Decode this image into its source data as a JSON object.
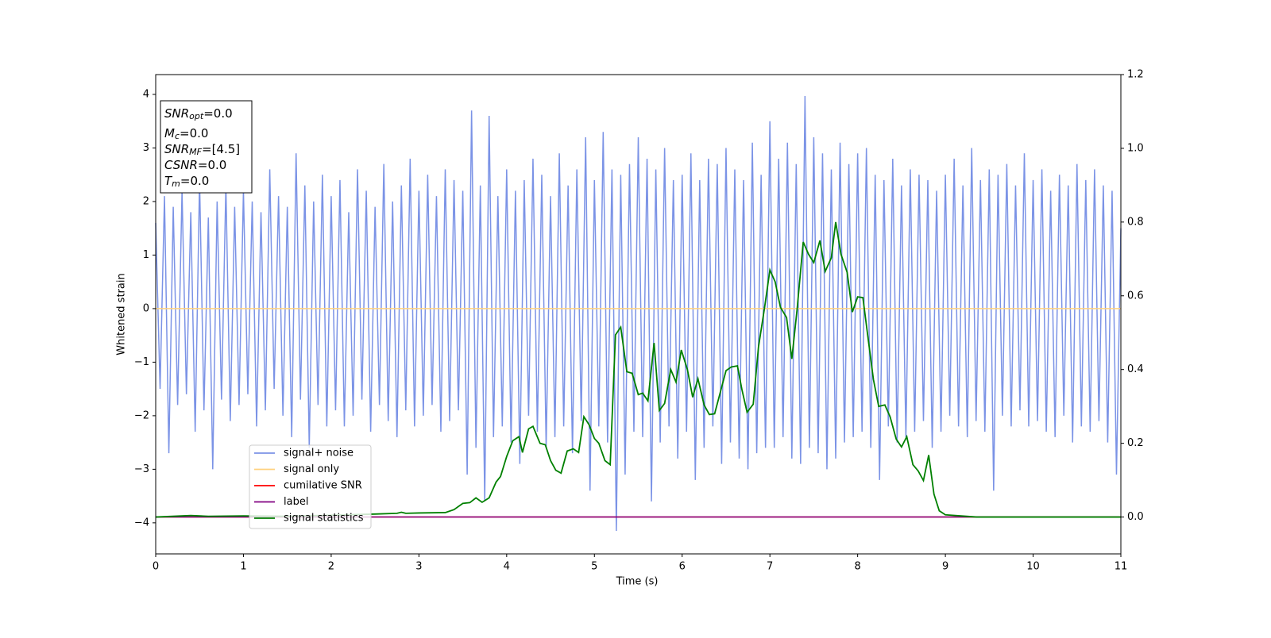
{
  "chart_data": {
    "type": "line",
    "xlabel": "Time (s)",
    "ylabel": "Whitened strain",
    "xlim": [
      0,
      11
    ],
    "ylim": [
      -4.58,
      4.37
    ],
    "y2lim": [
      -0.1,
      1.2
    ],
    "xticks": [
      0,
      1,
      2,
      3,
      4,
      5,
      6,
      7,
      8,
      9,
      10,
      11
    ],
    "yticks": [
      {
        "value": -4,
        "label": "−4"
      },
      {
        "value": -3,
        "label": "−3"
      },
      {
        "value": -2,
        "label": "−2"
      },
      {
        "value": -1,
        "label": "−1"
      },
      0,
      1,
      2,
      3,
      4
    ],
    "y2ticks": [
      {
        "value": 0,
        "label": "0.0"
      },
      0.2,
      0.4,
      0.6,
      0.8,
      {
        "value": 1,
        "label": "1.0"
      },
      1.2
    ],
    "grid": false,
    "legend": "lower left",
    "annotations": [
      {
        "symbol": "SNR",
        "subscript": "opt",
        "text": "=0.0"
      },
      {
        "symbol": "M",
        "subscript": "c",
        "text": "=0.0"
      },
      {
        "symbol": "SNR",
        "subscript": "MF",
        "text": "=[4.5]"
      },
      {
        "symbol": "CSNR",
        "subscript": "",
        "text": "=0.0"
      },
      {
        "symbol": "T",
        "subscript": "m",
        "text": "=0.0"
      }
    ],
    "series": [
      {
        "name": "signal+ noise",
        "color": "#7b93e6",
        "axis": "y",
        "x": [
          0,
          0.05,
          0.1,
          0.15,
          0.2,
          0.25,
          0.3,
          0.35,
          0.4,
          0.45,
          0.5,
          0.55,
          0.6,
          0.65,
          0.7,
          0.75,
          0.8,
          0.85,
          0.9,
          0.95,
          1,
          1.05,
          1.1,
          1.15,
          1.2,
          1.25,
          1.3,
          1.35,
          1.4,
          1.45,
          1.5,
          1.55,
          1.6,
          1.65,
          1.7,
          1.75,
          1.8,
          1.85,
          1.9,
          1.95,
          2,
          2.05,
          2.1,
          2.15,
          2.2,
          2.25,
          2.3,
          2.35,
          2.4,
          2.45,
          2.5,
          2.55,
          2.6,
          2.65,
          2.7,
          2.75,
          2.8,
          2.85,
          2.9,
          2.95,
          3,
          3.05,
          3.1,
          3.15,
          3.2,
          3.25,
          3.3,
          3.35,
          3.4,
          3.45,
          3.5,
          3.55,
          3.6,
          3.65,
          3.7,
          3.75,
          3.8,
          3.85,
          3.9,
          3.95,
          4,
          4.05,
          4.1,
          4.15,
          4.2,
          4.25,
          4.3,
          4.35,
          4.4,
          4.45,
          4.5,
          4.55,
          4.6,
          4.65,
          4.7,
          4.75,
          4.8,
          4.85,
          4.9,
          4.95,
          5,
          5.05,
          5.1,
          5.15,
          5.2,
          5.25,
          5.3,
          5.35,
          5.4,
          5.45,
          5.5,
          5.55,
          5.6,
          5.65,
          5.7,
          5.75,
          5.8,
          5.85,
          5.9,
          5.95,
          6,
          6.05,
          6.1,
          6.15,
          6.2,
          6.25,
          6.3,
          6.35,
          6.4,
          6.45,
          6.5,
          6.55,
          6.6,
          6.65,
          6.7,
          6.75,
          6.8,
          6.85,
          6.9,
          6.95,
          7,
          7.05,
          7.1,
          7.15,
          7.2,
          7.25,
          7.3,
          7.35,
          7.4,
          7.45,
          7.5,
          7.55,
          7.6,
          7.65,
          7.7,
          7.75,
          7.8,
          7.85,
          7.9,
          7.95,
          8,
          8.05,
          8.1,
          8.15,
          8.2,
          8.25,
          8.3,
          8.35,
          8.4,
          8.45,
          8.5,
          8.55,
          8.6,
          8.65,
          8.7,
          8.75,
          8.8,
          8.85,
          8.9,
          8.95,
          9,
          9.05,
          9.1,
          9.15,
          9.2,
          9.25,
          9.3,
          9.35,
          9.4,
          9.45,
          9.5,
          9.55,
          9.6,
          9.65,
          9.7,
          9.75,
          9.8,
          9.85,
          9.9,
          9.95,
          10,
          10.05,
          10.1,
          10.15,
          10.2,
          10.25,
          10.3,
          10.35,
          10.4,
          10.45,
          10.5,
          10.55,
          10.6,
          10.65,
          10.7,
          10.75,
          10.8,
          10.85,
          10.9,
          10.95,
          11
        ],
        "values": [
          1.6,
          -1.5,
          2.1,
          -2.7,
          1.9,
          -1.8,
          2.2,
          -1.6,
          1.8,
          -2.3,
          2.4,
          -1.9,
          1.7,
          -3.0,
          2.0,
          -1.7,
          2.3,
          -2.1,
          1.9,
          -1.8,
          2.2,
          -1.6,
          2.0,
          -2.2,
          1.8,
          -1.9,
          2.6,
          -1.5,
          2.1,
          -2.0,
          1.9,
          -2.4,
          2.9,
          -1.7,
          2.3,
          -2.6,
          2.0,
          -1.8,
          2.5,
          -2.2,
          2.1,
          -1.9,
          2.4,
          -2.2,
          1.8,
          -2.0,
          2.6,
          -1.7,
          2.2,
          -2.3,
          1.9,
          -1.8,
          2.7,
          -2.1,
          2.0,
          -2.4,
          2.3,
          -1.9,
          2.8,
          -2.2,
          2.2,
          -2.0,
          2.5,
          -1.8,
          2.1,
          -2.3,
          2.6,
          -2.1,
          2.4,
          -1.9,
          2.2,
          -3.1,
          3.7,
          -2.6,
          2.3,
          -3.6,
          3.6,
          -2.4,
          2.1,
          -2.2,
          2.6,
          -2.5,
          2.2,
          -2.9,
          2.4,
          -2.0,
          2.8,
          -2.3,
          2.5,
          -2.6,
          2.1,
          -2.4,
          2.9,
          -2.2,
          2.3,
          -2.7,
          2.6,
          -2.1,
          3.2,
          -3.4,
          2.4,
          -2.2,
          3.3,
          -2.5,
          2.6,
          -4.15,
          2.5,
          -3.1,
          2.7,
          -2.3,
          3.2,
          -2.4,
          2.8,
          -3.6,
          2.6,
          -2.5,
          3.0,
          -2.2,
          2.4,
          -2.8,
          2.5,
          -2.3,
          2.9,
          -3.2,
          2.4,
          -2.6,
          2.8,
          -2.2,
          2.7,
          -2.9,
          3.0,
          -2.5,
          2.6,
          -2.8,
          2.4,
          -3.0,
          3.1,
          -2.7,
          2.5,
          -2.6,
          3.5,
          -2.6,
          2.8,
          -2.4,
          3.1,
          -2.8,
          2.7,
          -2.9,
          3.97,
          -2.6,
          3.2,
          -2.7,
          2.9,
          -3.0,
          2.6,
          -2.8,
          3.1,
          -2.5,
          2.7,
          -2.4,
          2.9,
          -2.3,
          3.0,
          -2.6,
          2.5,
          -3.2,
          2.4,
          -2.2,
          2.8,
          -2.5,
          2.3,
          -2.4,
          2.6,
          -2.3,
          2.5,
          -2.1,
          2.4,
          -2.6,
          2.2,
          -2.3,
          2.5,
          -2.0,
          2.8,
          -2.2,
          2.3,
          -2.4,
          3.0,
          -2.1,
          2.4,
          -2.3,
          2.6,
          -3.4,
          2.5,
          -2.0,
          2.7,
          -2.2,
          2.3,
          -1.9,
          2.9,
          -2.2,
          2.4,
          -2.1,
          2.6,
          -2.3,
          2.2,
          -2.4,
          2.5,
          -2.0,
          2.3,
          -2.5,
          2.7,
          -2.2,
          2.4,
          -2.3,
          2.6,
          -2.1,
          2.3,
          -2.5,
          2.2,
          -3.1,
          1.5
        ]
      },
      {
        "name": "signal only",
        "color": "#ffd27f",
        "axis": "y",
        "x": [
          0,
          11
        ],
        "values": [
          0,
          0
        ]
      },
      {
        "name": "cumilative SNR",
        "color": "#ff0000",
        "axis": "y2",
        "x": [
          0,
          11
        ],
        "values": [
          0,
          0
        ]
      },
      {
        "name": "label",
        "color": "#800080",
        "axis": "y2",
        "x": [
          0,
          11
        ],
        "values": [
          0,
          0
        ]
      },
      {
        "name": "signal statistics",
        "color": "#008000",
        "axis": "y2",
        "x": [
          0,
          0.4,
          0.6,
          1.0,
          1.5,
          2.0,
          2.5,
          2.75,
          2.8,
          2.85,
          3.0,
          3.3,
          3.4,
          3.5,
          3.58,
          3.65,
          3.72,
          3.8,
          3.88,
          3.93,
          4.0,
          4.07,
          4.14,
          4.18,
          4.25,
          4.3,
          4.38,
          4.44,
          4.5,
          4.56,
          4.62,
          4.69,
          4.76,
          4.82,
          4.88,
          4.94,
          5.0,
          5.05,
          5.12,
          5.18,
          5.24,
          5.3,
          5.37,
          5.43,
          5.5,
          5.55,
          5.61,
          5.68,
          5.74,
          5.8,
          5.87,
          5.93,
          5.99,
          6.06,
          6.12,
          6.18,
          6.25,
          6.31,
          6.37,
          6.44,
          6.5,
          6.56,
          6.63,
          6.68,
          6.74,
          6.81,
          6.87,
          6.94,
          7.0,
          7.06,
          7.12,
          7.19,
          7.25,
          7.31,
          7.38,
          7.44,
          7.5,
          7.57,
          7.63,
          7.7,
          7.75,
          7.81,
          7.88,
          7.94,
          8.0,
          8.06,
          8.12,
          8.18,
          8.24,
          8.31,
          8.37,
          8.44,
          8.5,
          8.56,
          8.63,
          8.69,
          8.75,
          8.81,
          8.87,
          8.93,
          9.0,
          9.36,
          11.0
        ],
        "values": [
          0.0,
          0.004,
          0.002,
          0.003,
          0.002,
          0.005,
          0.008,
          0.01,
          0.013,
          0.01,
          0.011,
          0.012,
          0.02,
          0.037,
          0.039,
          0.052,
          0.04,
          0.052,
          0.095,
          0.11,
          0.164,
          0.207,
          0.218,
          0.175,
          0.239,
          0.246,
          0.2,
          0.196,
          0.153,
          0.127,
          0.119,
          0.179,
          0.185,
          0.175,
          0.272,
          0.25,
          0.213,
          0.2,
          0.153,
          0.142,
          0.494,
          0.515,
          0.394,
          0.39,
          0.332,
          0.336,
          0.315,
          0.472,
          0.289,
          0.308,
          0.4,
          0.366,
          0.453,
          0.4,
          0.325,
          0.375,
          0.304,
          0.278,
          0.28,
          0.343,
          0.397,
          0.407,
          0.41,
          0.347,
          0.284,
          0.306,
          0.461,
          0.569,
          0.67,
          0.638,
          0.569,
          0.541,
          0.429,
          0.563,
          0.746,
          0.713,
          0.69,
          0.75,
          0.666,
          0.703,
          0.8,
          0.713,
          0.664,
          0.556,
          0.597,
          0.595,
          0.483,
          0.373,
          0.3,
          0.304,
          0.272,
          0.211,
          0.19,
          0.218,
          0.142,
          0.125,
          0.099,
          0.168,
          0.062,
          0.017,
          0.006,
          0.0,
          0.0
        ]
      }
    ]
  }
}
